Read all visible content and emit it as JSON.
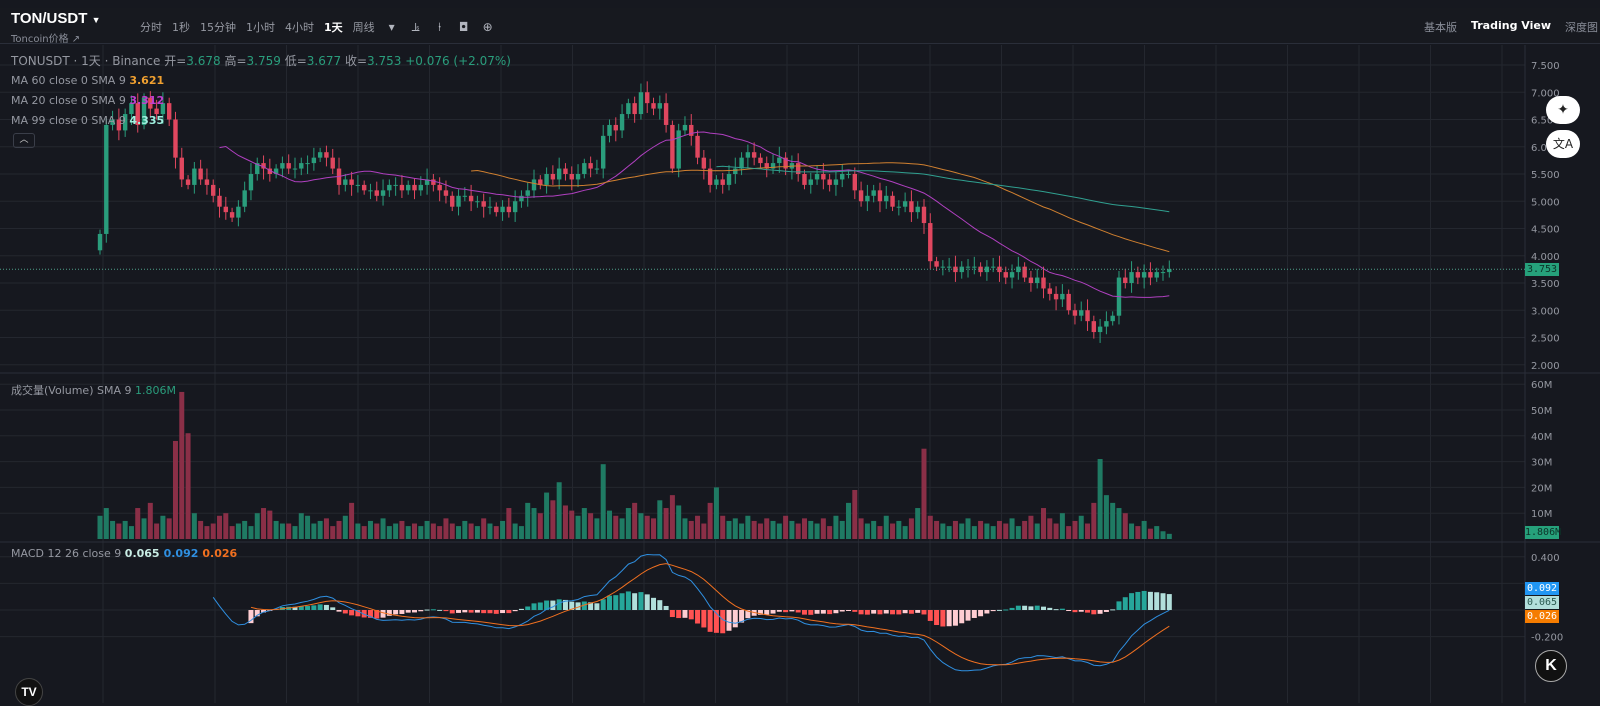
{
  "header": {
    "symbol": "TON/USDT",
    "symbol_sub": "Toncoin价格 ↗",
    "intervals": [
      "分时",
      "1秒",
      "15分钟",
      "1小时",
      "4小时",
      "1天",
      "周线"
    ],
    "active_interval": "1天",
    "views": [
      "基本版",
      "Trading View",
      "深度图"
    ],
    "active_view": "Trading View"
  },
  "legend": {
    "title": "TONUSDT · 1天 · Binance",
    "open_label": "开=",
    "open": "3.678",
    "high_label": "高=",
    "high": "3.759",
    "low_label": "低=",
    "low": "3.677",
    "close_label": "收=",
    "close": "3.753",
    "change": "+0.076 (+2.07%)",
    "ma": [
      {
        "label": "MA 60 close 0 SMA 9",
        "value": "3.621",
        "color": "#f0a030"
      },
      {
        "label": "MA 20 close 0 SMA 9",
        "value": "3.312",
        "color": "#c040d0"
      },
      {
        "label": "MA 99 close 0 SMA 9",
        "value": "4.335",
        "color": "#a0f0e0"
      }
    ],
    "volume_label": "成交量(Volume) SMA 9",
    "volume_value": "1.806M",
    "macd_label": "MACD 12 26 close 9",
    "macd_values": [
      {
        "value": "0.065",
        "color": "#c8ece4"
      },
      {
        "value": "0.092",
        "color": "#2f8fe0"
      },
      {
        "value": "0.026",
        "color": "#f07020"
      }
    ]
  },
  "colors": {
    "up": "#2a9d7c",
    "down": "#e0475f",
    "vol_up": "#1f7a63",
    "vol_down": "#8a2f47",
    "ma20": "#b040c0",
    "ma60": "#d08030",
    "ma99": "#30a090",
    "macd": "#2f8fe0",
    "signal": "#f07020"
  },
  "axes": {
    "price_ticks": [
      "7.500",
      "7.000",
      "6.500",
      "6.000",
      "5.500",
      "5.000",
      "4.500",
      "4.000",
      "3.500",
      "3.000",
      "2.500",
      "2.000"
    ],
    "volume_ticks": [
      "60M",
      "50M",
      "40M",
      "30M",
      "20M",
      "10M"
    ],
    "macd_ticks": [
      "0.400",
      "-0.200"
    ],
    "last_price": "3.753",
    "last_volume": "1.806M",
    "macd_badges": [
      "0.092",
      "0.065",
      "0.026"
    ]
  },
  "chart_data": {
    "type": "candlestick",
    "price_range": [
      2.0,
      7.5
    ],
    "volume_range_M": [
      0,
      60
    ],
    "macd_range": [
      -0.4,
      0.45
    ],
    "close": [
      4.4,
      6.4,
      6.5,
      6.3,
      6.6,
      6.8,
      6.4,
      6.9,
      6.7,
      6.6,
      6.8,
      6.5,
      5.8,
      5.4,
      5.3,
      5.6,
      5.4,
      5.3,
      5.1,
      4.9,
      4.8,
      4.7,
      4.9,
      5.2,
      5.5,
      5.7,
      5.6,
      5.5,
      5.6,
      5.7,
      5.6,
      5.6,
      5.7,
      5.7,
      5.8,
      5.9,
      5.8,
      5.6,
      5.3,
      5.4,
      5.3,
      5.3,
      5.2,
      5.2,
      5.1,
      5.2,
      5.3,
      5.3,
      5.2,
      5.3,
      5.2,
      5.3,
      5.4,
      5.3,
      5.2,
      5.1,
      4.9,
      5.1,
      5.1,
      5.0,
      5.0,
      4.9,
      4.9,
      4.8,
      4.9,
      4.8,
      5.0,
      5.1,
      5.2,
      5.4,
      5.3,
      5.5,
      5.4,
      5.6,
      5.5,
      5.4,
      5.5,
      5.7,
      5.6,
      5.6,
      6.2,
      6.4,
      6.3,
      6.6,
      6.8,
      6.6,
      7.0,
      6.8,
      6.7,
      6.8,
      6.4,
      5.6,
      6.3,
      6.4,
      6.2,
      5.8,
      5.6,
      5.3,
      5.4,
      5.3,
      5.5,
      5.6,
      5.8,
      5.9,
      5.8,
      5.7,
      5.6,
      5.7,
      5.8,
      5.6,
      5.7,
      5.5,
      5.3,
      5.4,
      5.5,
      5.4,
      5.3,
      5.4,
      5.5,
      5.5,
      5.2,
      5.0,
      5.1,
      5.2,
      5.0,
      5.1,
      4.9,
      4.9,
      5.0,
      4.8,
      4.9,
      4.6,
      3.9,
      3.8,
      3.8,
      3.8,
      3.7,
      3.8,
      3.8,
      3.8,
      3.7,
      3.8,
      3.8,
      3.7,
      3.6,
      3.7,
      3.8,
      3.6,
      3.5,
      3.6,
      3.4,
      3.3,
      3.2,
      3.3,
      3.0,
      2.9,
      3.0,
      2.8,
      2.6,
      2.7,
      2.8,
      2.9,
      3.6,
      3.5,
      3.7,
      3.6,
      3.7,
      3.6,
      3.7,
      3.7,
      3.753
    ],
    "volume_M": [
      9,
      12,
      7,
      6,
      7,
      5,
      12,
      8,
      14,
      6,
      9,
      8,
      38,
      57,
      41,
      10,
      7,
      5,
      6,
      9,
      10,
      5,
      6,
      7,
      5,
      10,
      12,
      11,
      7,
      6,
      6,
      5,
      10,
      9,
      6,
      7,
      8,
      5,
      7,
      9,
      14,
      6,
      5,
      7,
      6,
      8,
      5,
      6,
      7,
      5,
      6,
      5,
      7,
      6,
      5,
      8,
      6,
      5,
      7,
      6,
      5,
      8,
      6,
      5,
      7,
      12,
      6,
      5,
      14,
      12,
      10,
      18,
      15,
      22,
      13,
      11,
      9,
      12,
      10,
      8,
      29,
      11,
      9,
      8,
      12,
      14,
      10,
      9,
      8,
      15,
      12,
      17,
      13,
      8,
      7,
      9,
      6,
      14,
      20,
      9,
      7,
      8,
      6,
      9,
      7,
      6,
      8,
      7,
      6,
      9,
      7,
      6,
      8,
      7,
      6,
      8,
      5,
      9,
      7,
      14,
      19,
      8,
      6,
      7,
      5,
      9,
      6,
      7,
      5,
      8,
      12,
      35,
      9,
      7,
      6,
      5,
      7,
      6,
      8,
      5,
      7,
      6,
      5,
      7,
      6,
      8,
      5,
      7,
      9,
      6,
      12,
      8,
      6,
      10,
      5,
      7,
      9,
      6,
      14,
      31,
      17,
      14,
      12,
      10,
      6,
      5,
      7,
      4,
      5,
      3,
      2
    ]
  }
}
